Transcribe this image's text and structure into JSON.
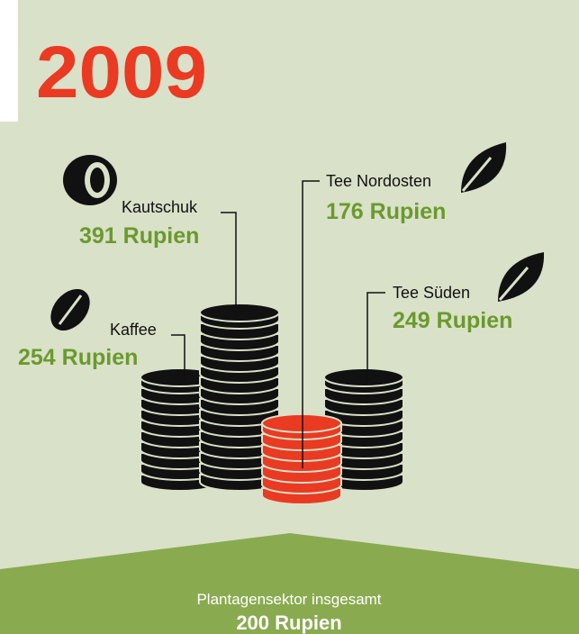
{
  "title": "2009",
  "items": [
    {
      "name": "Kaffee",
      "amount": "254 Rupien"
    },
    {
      "name": "Kautschuk",
      "amount": "391 Rupien"
    },
    {
      "name": "Tee Nordosten",
      "amount": "176 Rupien"
    },
    {
      "name": "Tee Süden",
      "amount": "249 Rupien"
    }
  ],
  "footer": {
    "label": "Plantagensektor insgesamt",
    "amount": "200 Rupien"
  }
}
